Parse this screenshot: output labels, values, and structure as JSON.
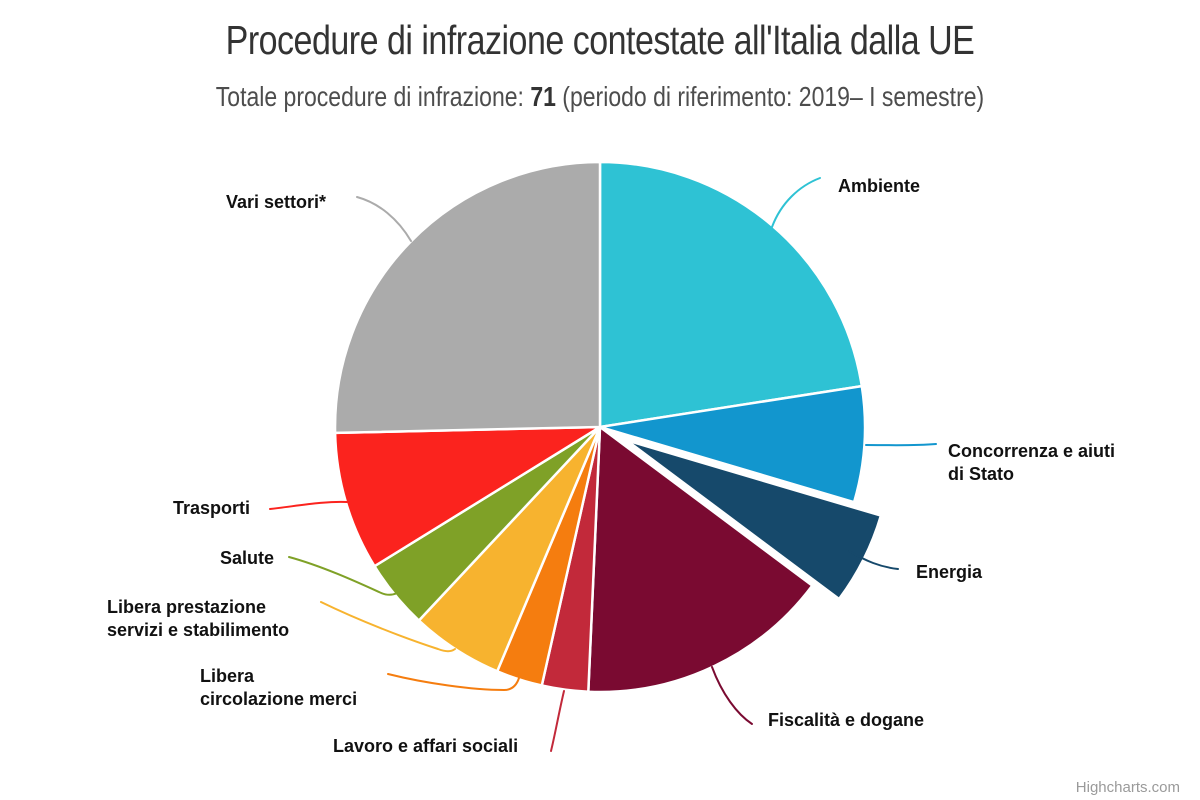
{
  "chart_data": {
    "type": "pie",
    "title": "Procedure di infrazione contestate all'Italia dalla UE",
    "subtitle": {
      "prefix": "Totale procedure di infrazione: ",
      "total": "71",
      "suffix": " (periodo di riferimento: 2019– I semestre)"
    },
    "total": 71,
    "start_angle": 0,
    "legend": "off",
    "slices": [
      {
        "name": "Ambiente",
        "value": 16,
        "color": "#2EC2D4",
        "sliced": false,
        "label_lines": [
          "Ambiente"
        ]
      },
      {
        "name": "Concorrenza e aiuti di Stato",
        "value": 5,
        "color": "#1296CE",
        "sliced": false,
        "label_lines": [
          "Concorrenza e aiuti",
          "di Stato"
        ]
      },
      {
        "name": "Energia",
        "value": 4,
        "color": "#16496B",
        "sliced": true,
        "label_lines": [
          "Energia"
        ]
      },
      {
        "name": "Fiscalità e dogane",
        "value": 11,
        "color": "#7A0A31",
        "sliced": false,
        "label_lines": [
          "Fiscalità e dogane"
        ]
      },
      {
        "name": "Lavoro e affari sociali",
        "value": 2,
        "color": "#C2293A",
        "sliced": false,
        "label_lines": [
          "Lavoro e affari sociali"
        ]
      },
      {
        "name": "Libera circolazione merci",
        "value": 2,
        "color": "#F57D0F",
        "sliced": false,
        "label_lines": [
          "Libera",
          "circolazione merci"
        ]
      },
      {
        "name": "Libera prestazione servizi e stabilimento",
        "value": 4,
        "color": "#F7B32F",
        "sliced": false,
        "label_lines": [
          "Libera prestazione",
          "servizi e stabilimento"
        ]
      },
      {
        "name": "Salute",
        "value": 3,
        "color": "#7FA127",
        "sliced": false,
        "label_lines": [
          "Salute"
        ]
      },
      {
        "name": "Trasporti",
        "value": 6,
        "color": "#FB231E",
        "sliced": false,
        "label_lines": [
          "Trasporti"
        ]
      },
      {
        "name": "Vari settori*",
        "value": 18,
        "color": "#ABABAB",
        "sliced": false,
        "label_lines": [
          "Vari settori*"
        ]
      }
    ],
    "credit": "Highcharts.com"
  }
}
